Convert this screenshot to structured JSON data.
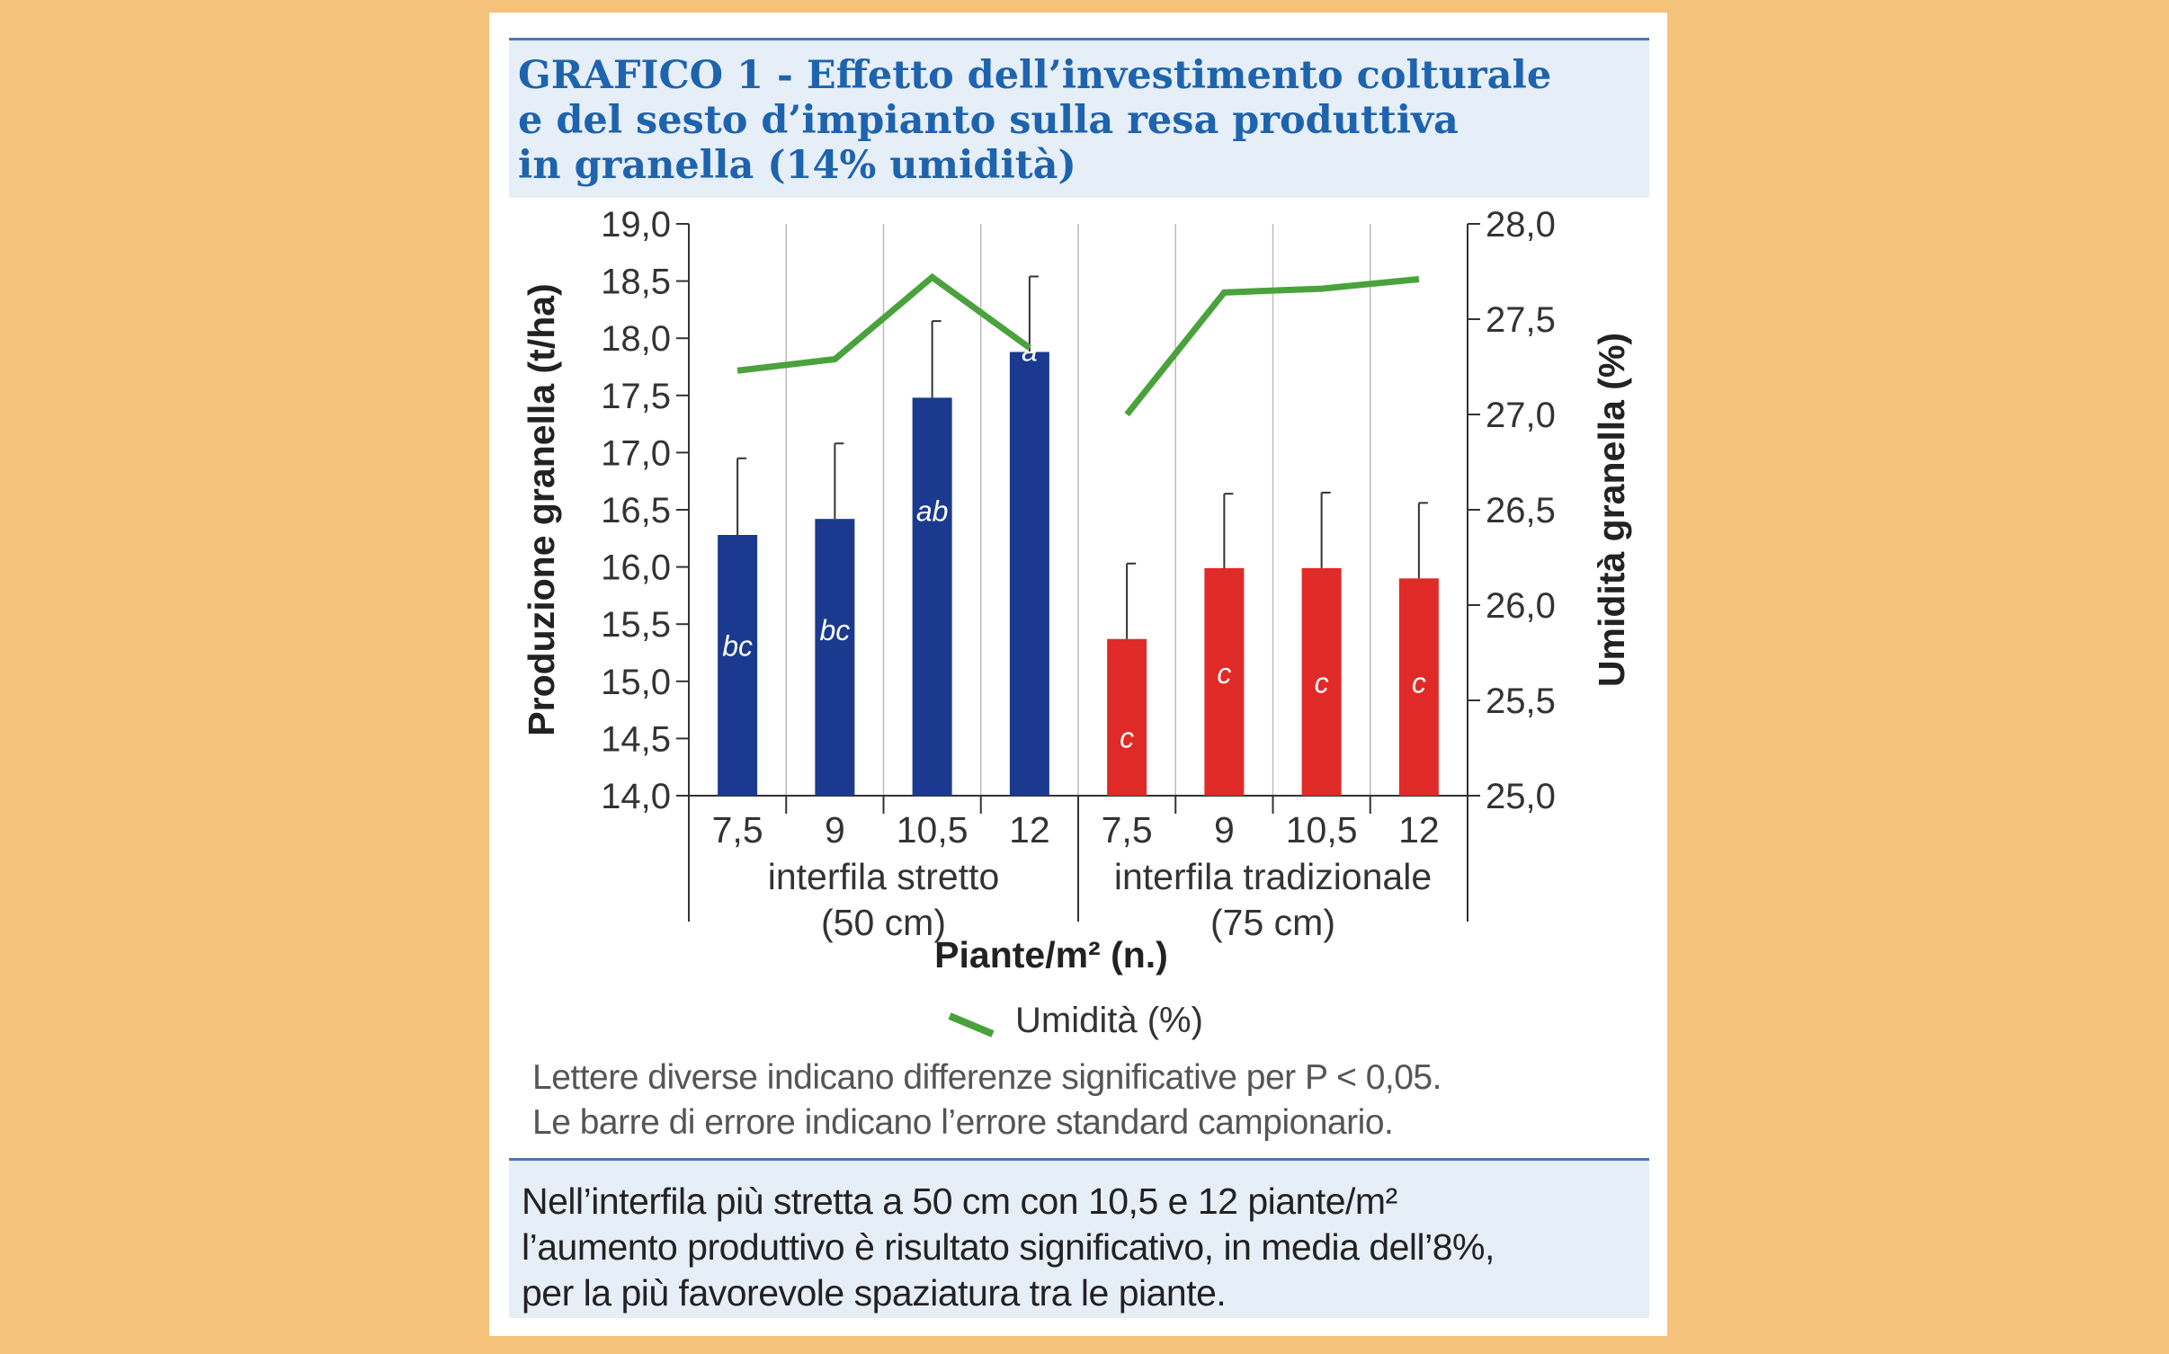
{
  "title_lines": [
    "GRAFICO 1 - Effetto dell’investimento colturale",
    "e del sesto d’impianto sulla resa produttiva",
    "in granella (14% umidità)"
  ],
  "notes": [
    "Lettere diverse indicano differenze significative per P < 0,05.",
    "Le barre di errore indicano l’errore standard campionario."
  ],
  "summary": [
    "Nell’interfila più stretta a 50 cm con 10,5 e 12 piante/m²",
    "l’aumento produttivo è risultato significativo, in media dell’8%,",
    "per la più favorevole spaziatura tra le piante."
  ],
  "colors": {
    "stretto": "#1b3a8f",
    "tradizionale": "#e02a27",
    "line": "#4aa23c",
    "title": "#1e63ad"
  },
  "chart_data": {
    "type": "bar",
    "title": "GRAFICO 1 - Effetto dell’investimento colturale e del sesto d’impianto sulla resa produttiva in granella (14% umidità)",
    "xlabel": "Piante/m² (n.)",
    "ylabel": "Produzione granella (t/ha)",
    "y2label": "Umidità granella (%)",
    "ylim": [
      14.0,
      19.0
    ],
    "y2lim": [
      25.0,
      28.0
    ],
    "y_ticks": [
      "14,0",
      "14,5",
      "15,0",
      "15,5",
      "16,0",
      "16,5",
      "17,0",
      "17,5",
      "18,0",
      "18,5",
      "19,0"
    ],
    "y2_ticks": [
      "25,0",
      "25,5",
      "26,0",
      "26,5",
      "27,0",
      "27,5",
      "28,0"
    ],
    "groups": [
      {
        "name": "interfila stretto",
        "sub": "(50 cm)",
        "categories": [
          "7,5",
          "9",
          "10,5",
          "12"
        ],
        "values": [
          16.28,
          16.42,
          17.48,
          17.88
        ],
        "errors": [
          0.67,
          0.66,
          0.67,
          0.66
        ],
        "letters": [
          "bc",
          "bc",
          "ab",
          "a"
        ],
        "letter_values": [
          15.3,
          15.44,
          16.48,
          17.88
        ],
        "humidity": [
          27.23,
          27.29,
          27.72,
          27.35
        ]
      },
      {
        "name": "interfila tradizionale",
        "sub": "(75 cm)",
        "categories": [
          "7,5",
          "9",
          "10,5",
          "12"
        ],
        "values": [
          15.37,
          15.99,
          15.99,
          15.9
        ],
        "errors": [
          0.66,
          0.65,
          0.66,
          0.66
        ],
        "letters": [
          "c",
          "c",
          "c",
          "c"
        ],
        "letter_values": [
          14.5,
          15.06,
          14.98,
          14.98
        ],
        "humidity": [
          27.0,
          27.64,
          27.66,
          27.71
        ]
      }
    ],
    "legend": "Umidità (%)"
  }
}
